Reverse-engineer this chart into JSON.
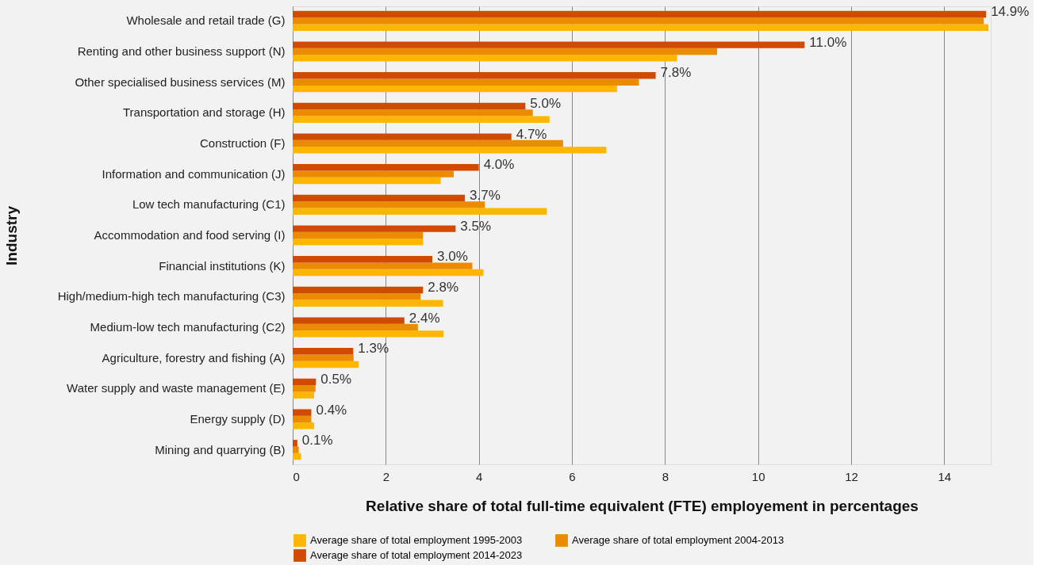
{
  "chart_data": {
    "type": "bar",
    "orientation": "horizontal",
    "xlabel": "Relative share of total full-time equivalent (FTE) employement in percentages",
    "ylabel": "Industry",
    "categories": [
      "Wholesale and retail trade (G)",
      "Renting and other business support (N)",
      "Other specialised business services (M)",
      "Transportation and storage (H)",
      "Construction (F)",
      "Information and communication (J)",
      "Low tech manufacturing (C1)",
      "Accommodation and food serving (I)",
      "Financial institutions (K)",
      "High/medium-high tech manufacturing (C3)",
      "Medium-low tech manufacturing (C2)",
      "Agriculture, forestry and fishing (A)",
      "Water supply and waste management (E)",
      "Energy supply (D)",
      "Mining and quarrying (B)"
    ],
    "series": [
      {
        "name": "Average share of total employment 1995-2003",
        "color": "#ffb600",
        "values": [
          14.95,
          8.26,
          6.97,
          5.52,
          6.74,
          3.18,
          5.46,
          2.8,
          4.1,
          3.23,
          3.24,
          1.42,
          0.46,
          0.46,
          0.18
        ]
      },
      {
        "name": "Average share of total employment 2004-2013",
        "color": "#eb8c00",
        "values": [
          14.85,
          9.12,
          7.44,
          5.16,
          5.81,
          3.46,
          4.13,
          2.8,
          3.86,
          2.75,
          2.69,
          1.31,
          0.49,
          0.4,
          0.13
        ]
      },
      {
        "name": "Average share of total employment 2014-2023",
        "color": "#d04a02",
        "values": [
          14.9,
          11.0,
          7.8,
          5.0,
          4.7,
          4.0,
          3.7,
          3.5,
          3.0,
          2.8,
          2.4,
          1.3,
          0.5,
          0.4,
          0.1
        ],
        "value_labels": [
          "14.9%",
          "11.0%",
          "7.8%",
          "5.0%",
          "4.7%",
          "4.0%",
          "3.7%",
          "3.5%",
          "3.0%",
          "2.8%",
          "2.4%",
          "1.3%",
          "0.5%",
          "0.4%",
          "0.1%"
        ]
      }
    ],
    "xlim": [
      0,
      15
    ],
    "xticks": [
      0,
      2,
      4,
      6,
      8,
      10,
      12,
      14
    ],
    "grid": "x",
    "legend": "bottom"
  }
}
